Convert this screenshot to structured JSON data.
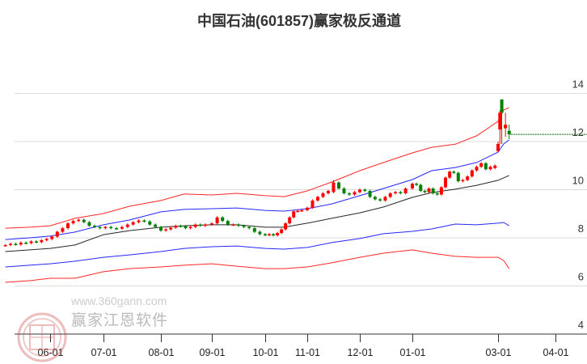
{
  "title": "中国石油(601857)赢家极反通道",
  "watermark": {
    "name": "赢家江恩软件",
    "url": "www.360gann.com",
    "seal": "江赢恩家"
  },
  "chart_data": {
    "type": "candlestick",
    "title": "中国石油(601857)赢家极反通道",
    "y_ticks": [
      "4",
      "6",
      "8",
      "10",
      "12",
      "14"
    ],
    "ylim": [
      4,
      14.8
    ],
    "x_ticks": [
      "06-01",
      "07-01",
      "08-01",
      "09-01",
      "10-01",
      "11-01",
      "12-01",
      "01-01",
      "03-01",
      "04-01"
    ],
    "grid": "horizontal",
    "colors": {
      "up": "#ff0000",
      "down": "#008000",
      "outer_band": "#ff0000",
      "inner_band": "#0000ff",
      "mid_line": "#000000",
      "last_price_line": "#006400"
    },
    "band_dates": [
      "05-06",
      "05-20",
      "06-01",
      "06-15",
      "07-01",
      "07-15",
      "08-01",
      "08-15",
      "09-01",
      "09-15",
      "10-01",
      "10-15",
      "11-01",
      "11-15",
      "12-01",
      "12-15",
      "01-01",
      "01-15",
      "02-01",
      "02-15",
      "03-01",
      "03-04",
      "03-07"
    ],
    "bands": [
      {
        "id": "upper-outer",
        "color": "#ff0000",
        "values": [
          8.4,
          8.44,
          8.5,
          8.81,
          9.01,
          9.31,
          9.55,
          9.82,
          9.78,
          9.85,
          9.75,
          9.71,
          9.95,
          10.32,
          10.79,
          11.13,
          11.53,
          11.76,
          11.89,
          12.24,
          12.84,
          13.31,
          13.41
        ]
      },
      {
        "id": "upper-inner",
        "color": "#0000ff",
        "values": [
          7.93,
          8.0,
          8.07,
          8.24,
          8.54,
          8.74,
          9.08,
          9.18,
          9.21,
          9.24,
          9.14,
          9.11,
          9.21,
          9.41,
          9.75,
          10.05,
          10.42,
          10.79,
          10.92,
          11.13,
          11.56,
          11.9,
          12.07
        ]
      },
      {
        "id": "middle",
        "color": "#000000",
        "values": [
          7.43,
          7.5,
          7.56,
          7.7,
          8.13,
          8.3,
          8.44,
          8.5,
          8.54,
          8.54,
          8.44,
          8.44,
          8.61,
          8.81,
          9.04,
          9.28,
          9.68,
          9.88,
          10.02,
          10.18,
          10.39,
          10.49,
          10.59
        ]
      },
      {
        "id": "lower-inner",
        "color": "#0000ff",
        "values": [
          6.79,
          6.86,
          6.92,
          7.03,
          7.19,
          7.29,
          7.43,
          7.56,
          7.63,
          7.66,
          7.56,
          7.53,
          7.6,
          7.8,
          7.97,
          8.17,
          8.27,
          8.37,
          8.57,
          8.54,
          8.61,
          8.64,
          8.5
        ]
      },
      {
        "id": "lower-outer",
        "color": "#ff0000",
        "values": [
          6.15,
          6.22,
          6.32,
          6.32,
          6.59,
          6.72,
          6.79,
          6.86,
          6.92,
          6.82,
          6.72,
          6.72,
          6.79,
          6.96,
          7.19,
          7.36,
          7.5,
          7.36,
          7.23,
          7.19,
          7.19,
          7.06,
          6.72
        ]
      }
    ],
    "candles_note_format": "[date, close] or [date, open, close, high, low]",
    "candles": [
      [
        "05-06",
        7.66,
        7.7,
        7.74,
        7.63
      ],
      [
        "05-09",
        7.75
      ],
      [
        "05-12",
        7.72
      ],
      [
        "05-15",
        7.8
      ],
      [
        "05-18",
        7.78
      ],
      [
        "05-21",
        7.85
      ],
      [
        "05-24",
        7.82
      ],
      [
        "05-27",
        7.9
      ],
      [
        "05-30",
        7.95
      ],
      [
        "06-02",
        8.05
      ],
      [
        "06-05",
        8.25
      ],
      [
        "06-08",
        8.4
      ],
      [
        "06-11",
        8.6
      ],
      [
        "06-14",
        8.7
      ],
      [
        "06-17",
        8.75
      ],
      [
        "06-20",
        8.65
      ],
      [
        "06-23",
        8.5
      ],
      [
        "06-26",
        8.45
      ],
      [
        "06-29",
        8.4
      ],
      [
        "07-02",
        8.45
      ],
      [
        "07-05",
        8.4
      ],
      [
        "07-08",
        8.38
      ],
      [
        "07-11",
        8.45
      ],
      [
        "07-14",
        8.55
      ],
      [
        "07-17",
        8.65
      ],
      [
        "07-20",
        8.72
      ],
      [
        "07-23",
        8.68
      ],
      [
        "07-26",
        8.55
      ],
      [
        "07-29",
        8.45
      ],
      [
        "08-01",
        8.3
      ],
      [
        "08-04",
        8.35
      ],
      [
        "08-07",
        8.42
      ],
      [
        "08-10",
        8.5
      ],
      [
        "08-13",
        8.48
      ],
      [
        "08-16",
        8.4
      ],
      [
        "08-19",
        8.45
      ],
      [
        "08-22",
        8.55
      ],
      [
        "08-25",
        8.5
      ],
      [
        "08-28",
        8.55
      ],
      [
        "09-01",
        8.6
      ],
      [
        "09-04",
        8.85
      ],
      [
        "09-07",
        8.7
      ],
      [
        "09-10",
        8.55
      ],
      [
        "09-13",
        8.55
      ],
      [
        "09-16",
        8.5
      ],
      [
        "09-19",
        8.45
      ],
      [
        "09-22",
        8.4
      ],
      [
        "09-25",
        8.25
      ],
      [
        "09-28",
        8.15
      ],
      [
        "10-01",
        8.12
      ],
      [
        "10-04",
        8.15
      ],
      [
        "10-07",
        8.1
      ],
      [
        "10-10",
        8.2
      ],
      [
        "10-13",
        8.35
      ],
      [
        "10-16",
        8.6
      ],
      [
        "10-19",
        8.85
      ],
      [
        "10-22",
        9.1
      ],
      [
        "10-25",
        9.12
      ],
      [
        "10-28",
        9.15
      ],
      [
        "11-01",
        9.25
      ],
      [
        "11-04",
        9.55
      ],
      [
        "11-07",
        9.7
      ],
      [
        "11-10",
        9.85
      ],
      [
        "11-13",
        9.95
      ],
      [
        "11-16",
        9.9,
        10.3,
        10.4,
        9.85
      ],
      [
        "11-19",
        10.05
      ],
      [
        "11-22",
        9.85
      ],
      [
        "11-25",
        9.8
      ],
      [
        "11-28",
        9.9
      ],
      [
        "12-01",
        10.0
      ],
      [
        "12-04",
        9.95
      ],
      [
        "12-07",
        9.7
      ],
      [
        "12-10",
        9.6
      ],
      [
        "12-13",
        9.55
      ],
      [
        "12-16",
        9.7
      ],
      [
        "12-19",
        9.85
      ],
      [
        "12-22",
        9.9
      ],
      [
        "12-25",
        9.85
      ],
      [
        "12-28",
        10.05
      ],
      [
        "01-01",
        10.25
      ],
      [
        "01-04",
        10.2
      ],
      [
        "01-07",
        9.95
      ],
      [
        "01-10",
        9.9
      ],
      [
        "01-13",
        10.05
      ],
      [
        "01-16",
        9.85
      ],
      [
        "01-19",
        9.8
      ],
      [
        "01-22",
        10.1
      ],
      [
        "01-25",
        10.5
      ],
      [
        "01-28",
        10.75
      ],
      [
        "01-31",
        10.7
      ],
      [
        "02-03",
        10.35
      ],
      [
        "02-06",
        10.4
      ],
      [
        "02-09",
        10.55
      ],
      [
        "02-12",
        10.8
      ],
      [
        "02-15",
        10.95
      ],
      [
        "02-18",
        11.1
      ],
      [
        "02-21",
        10.85
      ],
      [
        "02-24",
        10.95
      ],
      [
        "02-27",
        10.9,
        11.0,
        11.05,
        10.85
      ],
      [
        "03-01",
        11.6,
        11.9,
        12.0,
        11.55
      ],
      [
        "03-02",
        12.5,
        13.2,
        13.3,
        11.9
      ],
      [
        "03-03",
        13.75,
        13.2,
        13.75,
        11.9
      ],
      [
        "03-05",
        12.55,
        12.7,
        13.2,
        12.2
      ],
      [
        "03-07",
        12.45,
        12.3,
        12.7,
        12.1
      ]
    ]
  }
}
